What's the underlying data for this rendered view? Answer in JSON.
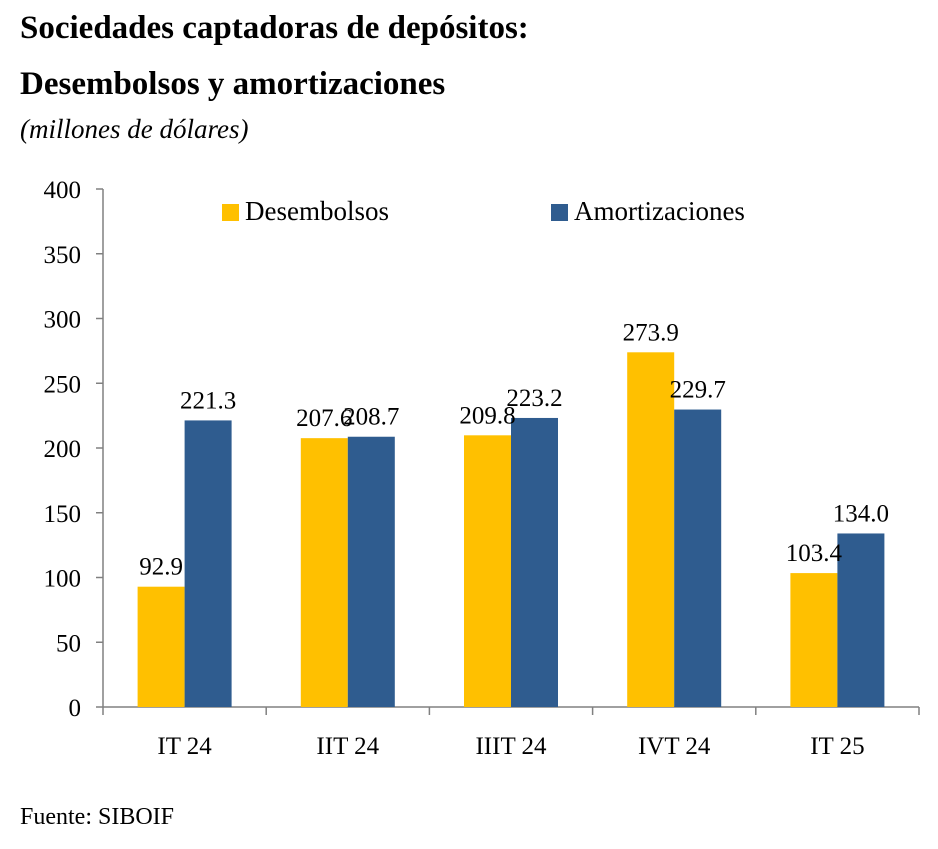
{
  "header": {
    "title_line1": "Sociedades captadoras de depósitos:",
    "title_line2": "Desembolsos y amortizaciones",
    "subtitle": "(millones de dólares)"
  },
  "footer": {
    "source": "Fuente:  SIBOIF"
  },
  "chart_data": {
    "type": "bar",
    "title": "Sociedades captadoras de depósitos: Desembolsos y amortizaciones",
    "subtitle": "(millones de dólares)",
    "xlabel": "",
    "ylabel": "",
    "categories": [
      "IT 24",
      "IIT 24",
      "IIIT 24",
      "IVT 24",
      "IT 25"
    ],
    "series": [
      {
        "name": "Desembolsos",
        "color": "#FFC000",
        "values": [
          92.9,
          207.6,
          209.8,
          273.9,
          103.4
        ]
      },
      {
        "name": "Amortizaciones",
        "color": "#2F5C8F",
        "values": [
          221.3,
          208.7,
          223.2,
          229.7,
          134.0
        ]
      }
    ],
    "ylim": [
      0,
      400
    ],
    "yticks": [
      0,
      50,
      100,
      150,
      200,
      250,
      300,
      350,
      400
    ],
    "grid": false,
    "legend_position": "top",
    "data_labels_decimals": 1
  }
}
